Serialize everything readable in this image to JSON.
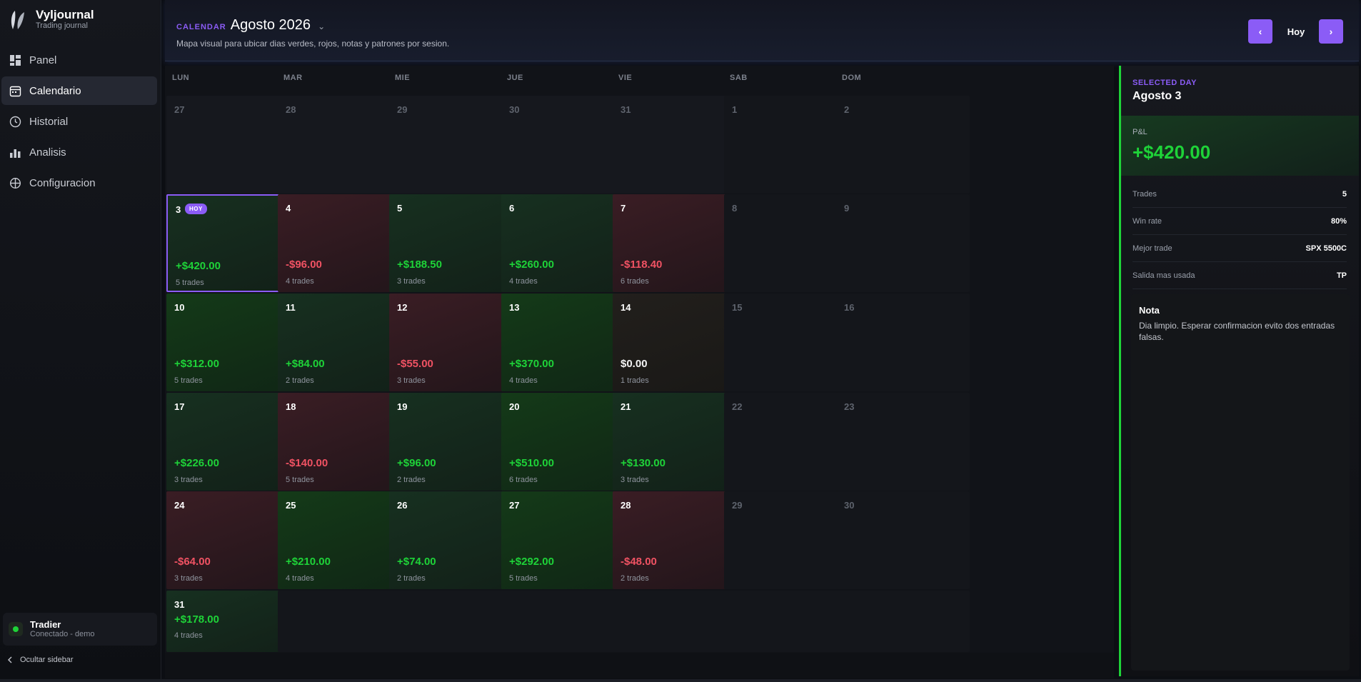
{
  "app": {
    "name": "Vyljournal",
    "subtitle": "Trading journal"
  },
  "sidebar": {
    "items": [
      {
        "label": "Panel",
        "icon": "dashboard-icon",
        "active": false
      },
      {
        "label": "Calendario",
        "icon": "calendar-icon",
        "active": true
      },
      {
        "label": "Historial",
        "icon": "clock-icon",
        "active": false
      },
      {
        "label": "Analisis",
        "icon": "bar-chart-icon",
        "active": false
      },
      {
        "label": "Configuracion",
        "icon": "settings-icon",
        "active": false
      }
    ],
    "user": {
      "name": "Tradier",
      "status": "Conectado - demo"
    },
    "hide_label": "Ocultar sidebar"
  },
  "header": {
    "kicker": "CALENDAR",
    "month": "Agosto 2026",
    "description": "Mapa visual para ubicar dias verdes, rojos, notas y patrones por sesion.",
    "prev_label": "‹",
    "today_label": "Hoy",
    "next_label": "›"
  },
  "calendar": {
    "weekdays": [
      "LUN",
      "MAR",
      "MIE",
      "JUE",
      "VIE",
      "SAB",
      "DOM"
    ],
    "today_badge": "HOY",
    "weeks": [
      [
        {
          "day": "27",
          "kind": "out"
        },
        {
          "day": "28",
          "kind": "out"
        },
        {
          "day": "29",
          "kind": "out"
        },
        {
          "day": "30",
          "kind": "out"
        },
        {
          "day": "31",
          "kind": "out"
        },
        {
          "day": "1",
          "kind": "weekend"
        },
        {
          "day": "2",
          "kind": "weekend"
        }
      ],
      [
        {
          "day": "3",
          "kind": "pos",
          "pnl": "+$420.00",
          "trades": "5 trades",
          "today": true,
          "selected": true
        },
        {
          "day": "4",
          "kind": "neg",
          "pnl": "-$96.00",
          "trades": "4 trades"
        },
        {
          "day": "5",
          "kind": "pos",
          "pnl": "+$188.50",
          "trades": "3 trades"
        },
        {
          "day": "6",
          "kind": "pos",
          "pnl": "+$260.00",
          "trades": "4 trades"
        },
        {
          "day": "7",
          "kind": "neg",
          "pnl": "-$118.40",
          "trades": "6 trades"
        },
        {
          "day": "8",
          "kind": "weekend"
        },
        {
          "day": "9",
          "kind": "weekend"
        }
      ],
      [
        {
          "day": "10",
          "kind": "pos2",
          "pnl": "+$312.00",
          "trades": "5 trades"
        },
        {
          "day": "11",
          "kind": "pos",
          "pnl": "+$84.00",
          "trades": "2 trades"
        },
        {
          "day": "12",
          "kind": "neg",
          "pnl": "-$55.00",
          "trades": "3 trades"
        },
        {
          "day": "13",
          "kind": "pos2",
          "pnl": "+$370.00",
          "trades": "4 trades"
        },
        {
          "day": "14",
          "kind": "neu",
          "pnl": "$0.00",
          "trades": "1 trades"
        },
        {
          "day": "15",
          "kind": "weekend"
        },
        {
          "day": "16",
          "kind": "weekend"
        }
      ],
      [
        {
          "day": "17",
          "kind": "pos",
          "pnl": "+$226.00",
          "trades": "3 trades"
        },
        {
          "day": "18",
          "kind": "neg",
          "pnl": "-$140.00",
          "trades": "5 trades"
        },
        {
          "day": "19",
          "kind": "pos",
          "pnl": "+$96.00",
          "trades": "2 trades"
        },
        {
          "day": "20",
          "kind": "pos2",
          "pnl": "+$510.00",
          "trades": "6 trades"
        },
        {
          "day": "21",
          "kind": "pos",
          "pnl": "+$130.00",
          "trades": "3 trades"
        },
        {
          "day": "22",
          "kind": "weekend"
        },
        {
          "day": "23",
          "kind": "weekend"
        }
      ],
      [
        {
          "day": "24",
          "kind": "neg",
          "pnl": "-$64.00",
          "trades": "3 trades"
        },
        {
          "day": "25",
          "kind": "pos2",
          "pnl": "+$210.00",
          "trades": "4 trades"
        },
        {
          "day": "26",
          "kind": "pos",
          "pnl": "+$74.00",
          "trades": "2 trades"
        },
        {
          "day": "27",
          "kind": "pos2",
          "pnl": "+$292.00",
          "trades": "5 trades"
        },
        {
          "day": "28",
          "kind": "neg",
          "pnl": "-$48.00",
          "trades": "2 trades"
        },
        {
          "day": "29",
          "kind": "weekend"
        },
        {
          "day": "30",
          "kind": "weekend"
        }
      ],
      [
        {
          "day": "31",
          "kind": "pos",
          "pnl": "+$178.00",
          "trades": "4 trades",
          "compact": true
        },
        {
          "day": "",
          "kind": "empty"
        },
        {
          "day": "",
          "kind": "empty"
        },
        {
          "day": "",
          "kind": "empty"
        },
        {
          "day": "",
          "kind": "empty"
        },
        {
          "day": "",
          "kind": "empty"
        },
        {
          "day": "",
          "kind": "empty"
        }
      ]
    ]
  },
  "panel": {
    "kicker": "SELECTED DAY",
    "day": "Agosto 3",
    "pnl_label": "P&L",
    "pnl_value": "+$420.00",
    "stats": [
      {
        "label": "Trades",
        "value": "5"
      },
      {
        "label": "Win rate",
        "value": "80%"
      },
      {
        "label": "Mejor trade",
        "value": "SPX 5500C"
      },
      {
        "label": "Salida mas usada",
        "value": "TP"
      }
    ],
    "note_title": "Nota",
    "note_text": "Dia limpio. Esperar confirmacion evito dos entradas falsas."
  },
  "colors": {
    "accent": "#8b5cf6",
    "positive": "#1ed338",
    "negative": "#f05263"
  }
}
